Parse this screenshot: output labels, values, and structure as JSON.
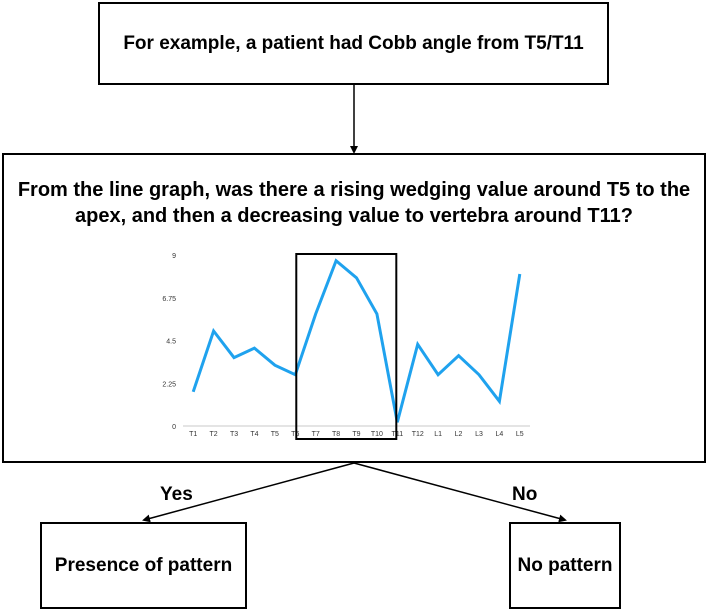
{
  "top_box": {
    "text": "For example, a patient had Cobb angle from T5/T11"
  },
  "middle_box": {
    "question": "From the line graph, was there a rising wedging value around T5 to the apex, and then a decreasing value to vertebra around T11?"
  },
  "branches": {
    "yes_label": "Yes",
    "no_label": "No"
  },
  "outcomes": {
    "left": "Presence of pattern",
    "right": "No pattern"
  },
  "colors": {
    "line": "#1fa2ee",
    "frame": "#000000",
    "axis": "#c8c8c8"
  },
  "chart_data": {
    "type": "line",
    "categories": [
      "T1",
      "T2",
      "T3",
      "T4",
      "T5",
      "T6",
      "T7",
      "T8",
      "T9",
      "T10",
      "T11",
      "T12",
      "L1",
      "L2",
      "L3",
      "L4",
      "L5"
    ],
    "values": [
      1.8,
      5.0,
      3.6,
      4.1,
      3.2,
      2.7,
      5.9,
      8.7,
      7.8,
      5.9,
      0.2,
      4.3,
      2.7,
      3.7,
      2.7,
      1.3,
      8.0
    ],
    "yticks": [
      "0",
      "2.25",
      "4.5",
      "6.75",
      "9"
    ],
    "ylim": [
      0,
      9
    ],
    "highlight": {
      "from": "T6",
      "to": "T11"
    }
  }
}
